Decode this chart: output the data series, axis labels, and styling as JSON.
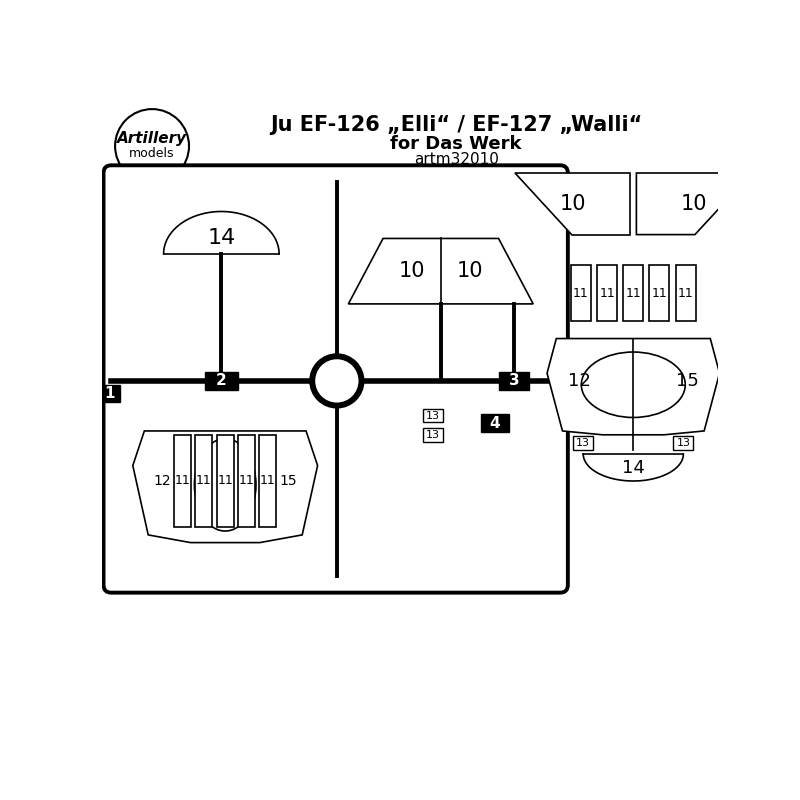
{
  "title_line1": "Ju EF-126 „Elli“ / EF-127 „Walli“",
  "title_line2": "for Das Werk",
  "title_line3": "artm32010",
  "logo_text1": "Artillery",
  "logo_text2": "models",
  "bg_color": "#ffffff",
  "line_color": "#000000",
  "fill_color": "#ffffff",
  "dark_fill": "#000000"
}
